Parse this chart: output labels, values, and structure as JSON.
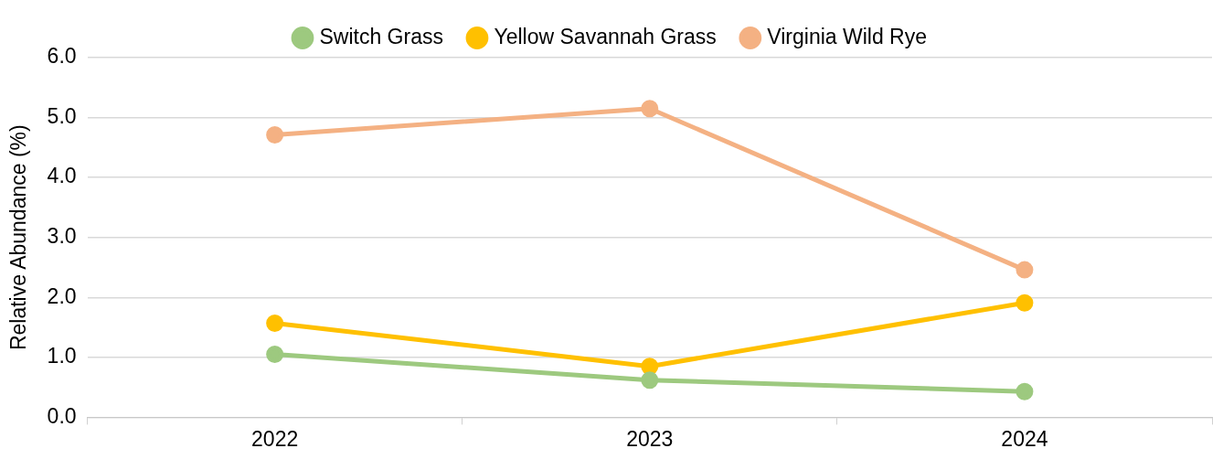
{
  "chart_data": {
    "type": "line",
    "ylabel": "Relative Abundance (%)",
    "categories": [
      "2022",
      "2023",
      "2024"
    ],
    "series": [
      {
        "name": "Switch Grass",
        "color": "#9dc97f",
        "values": [
          1.05,
          0.62,
          0.43
        ]
      },
      {
        "name": "Yellow Savannah Grass",
        "color": "#ffc000",
        "values": [
          1.57,
          0.85,
          1.91
        ]
      },
      {
        "name": "Virginia Wild Rye",
        "color": "#f4b183",
        "values": [
          4.71,
          5.15,
          2.46
        ]
      }
    ],
    "ylim": [
      0,
      6
    ],
    "yticks": [
      {
        "value": 0,
        "label": "0.0"
      },
      {
        "value": 1,
        "label": "1.0"
      },
      {
        "value": 2,
        "label": "2.0"
      },
      {
        "value": 3,
        "label": "3.0"
      },
      {
        "value": 4,
        "label": "4.0"
      },
      {
        "value": 5,
        "label": "5.0"
      },
      {
        "value": 6,
        "label": "6.0"
      }
    ],
    "grid": "y",
    "legend": "top",
    "marker": "circle",
    "line_style": "solid"
  }
}
